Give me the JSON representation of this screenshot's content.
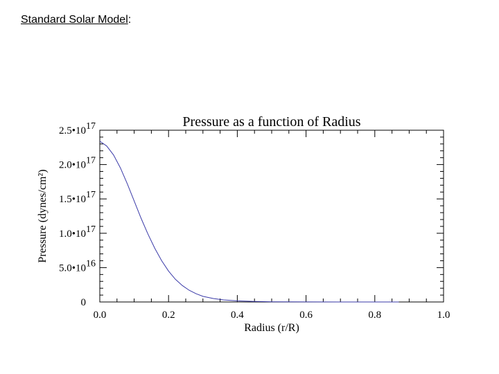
{
  "slide": {
    "heading": "Standard Solar Model",
    "heading_suffix": ":"
  },
  "chart_data": {
    "type": "line",
    "title": "Pressure as a function of Radius",
    "xlabel": "Radius (r/R)",
    "ylabel": "Pressure (dynes/cm²)",
    "xlim": [
      0.0,
      1.0
    ],
    "ylim": [
      0,
      2.5e+17
    ],
    "x_ticks": [
      {
        "value": 0.0,
        "label": "0.0"
      },
      {
        "value": 0.2,
        "label": "0.2"
      },
      {
        "value": 0.4,
        "label": "0.4"
      },
      {
        "value": 0.6,
        "label": "0.6"
      },
      {
        "value": 0.8,
        "label": "0.8"
      },
      {
        "value": 1.0,
        "label": "1.0"
      }
    ],
    "y_ticks": [
      {
        "value": 0,
        "mantissa": "0",
        "exponent": ""
      },
      {
        "value": 5e+16,
        "mantissa": "5.0•10",
        "exponent": "16"
      },
      {
        "value": 1e+17,
        "mantissa": "1.0•10",
        "exponent": "17"
      },
      {
        "value": 1.5e+17,
        "mantissa": "1.5•10",
        "exponent": "17"
      },
      {
        "value": 2e+17,
        "mantissa": "2.0•10",
        "exponent": "17"
      },
      {
        "value": 2.5e+17,
        "mantissa": "2.5•10",
        "exponent": "17"
      }
    ],
    "series": [
      {
        "color": "#3a3aa8",
        "points": [
          [
            0.0,
            2.34e+17
          ],
          [
            0.02,
            2.27e+17
          ],
          [
            0.04,
            2.14e+17
          ],
          [
            0.06,
            1.95e+17
          ],
          [
            0.08,
            1.72e+17
          ],
          [
            0.1,
            1.47e+17
          ],
          [
            0.12,
            1.22e+17
          ],
          [
            0.14,
            9.9e+16
          ],
          [
            0.16,
            7.8e+16
          ],
          [
            0.18,
            6e+16
          ],
          [
            0.2,
            4.5e+16
          ],
          [
            0.22,
            3.3e+16
          ],
          [
            0.24,
            2.4e+16
          ],
          [
            0.26,
            1.7e+16
          ],
          [
            0.28,
            1.2e+16
          ],
          [
            0.3,
            8200000000000000.0
          ],
          [
            0.33,
            5000000000000000.0
          ],
          [
            0.36,
            3000000000000000.0
          ],
          [
            0.4,
            1600000000000000.0
          ],
          [
            0.45,
            700000000000000.0
          ],
          [
            0.5,
            280000000000000.0
          ],
          [
            0.6,
            60000000000000.0
          ],
          [
            0.7,
            12000000000000.0
          ],
          [
            0.8,
            2000000000000.0
          ],
          [
            0.87,
            400000000000.0
          ]
        ]
      }
    ]
  }
}
